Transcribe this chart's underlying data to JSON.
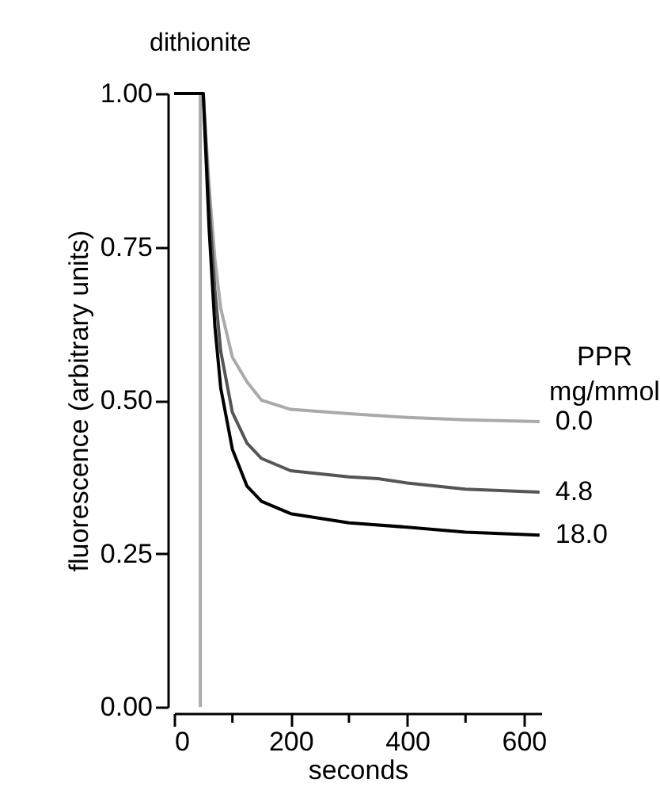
{
  "chart_data": {
    "type": "line",
    "xlabel": "seconds",
    "ylabel": "fluorescence (arbitrary units)",
    "legend_title": "PPR mg/mmol",
    "xlim": [
      0,
      630
    ],
    "ylim": [
      0,
      1.0
    ],
    "xticks": [
      0,
      {
        "value": 100,
        "label": null
      },
      200,
      {
        "value": 300,
        "label": null
      },
      400,
      {
        "value": 500,
        "label": null
      },
      600
    ],
    "yticks": [
      {
        "value": 0,
        "label": "0.00"
      },
      {
        "value": 0.25,
        "label": "0.25"
      },
      {
        "value": 0.5,
        "label": "0.50"
      },
      {
        "value": 0.75,
        "label": "0.75"
      },
      {
        "value": 1.0,
        "label": "1.00"
      }
    ],
    "grid": false,
    "legend": "right",
    "marker": "none",
    "line_style": "solid",
    "annotations": [
      {
        "text": "dithionite",
        "x": 45,
        "y": 1.0
      }
    ],
    "series": [
      {
        "name": "0.0",
        "color": "#aaaaaa",
        "x": [
          45,
          45,
          50,
          60,
          70,
          80,
          100,
          125,
          150,
          200,
          300,
          400,
          500,
          627
        ],
        "values": [
          0,
          1.0,
          1.0,
          0.85,
          0.73,
          0.65,
          0.57,
          0.53,
          0.5,
          0.485,
          0.478,
          0.472,
          0.468,
          0.465
        ]
      },
      {
        "name": "4.8",
        "color": "#555555",
        "x": [
          0,
          50,
          60,
          70,
          80,
          100,
          125,
          150,
          200,
          300,
          350,
          400,
          500,
          627
        ],
        "values": [
          1.0,
          1.0,
          0.82,
          0.68,
          0.58,
          0.48,
          0.43,
          0.405,
          0.385,
          0.375,
          0.372,
          0.365,
          0.355,
          0.35
        ]
      },
      {
        "name": "18.0",
        "color": "#000000",
        "x": [
          0,
          50,
          60,
          70,
          80,
          100,
          125,
          150,
          200,
          300,
          400,
          500,
          627
        ],
        "values": [
          1.0,
          1.0,
          0.78,
          0.62,
          0.52,
          0.42,
          0.36,
          0.335,
          0.315,
          0.3,
          0.293,
          0.285,
          0.28
        ]
      }
    ]
  }
}
